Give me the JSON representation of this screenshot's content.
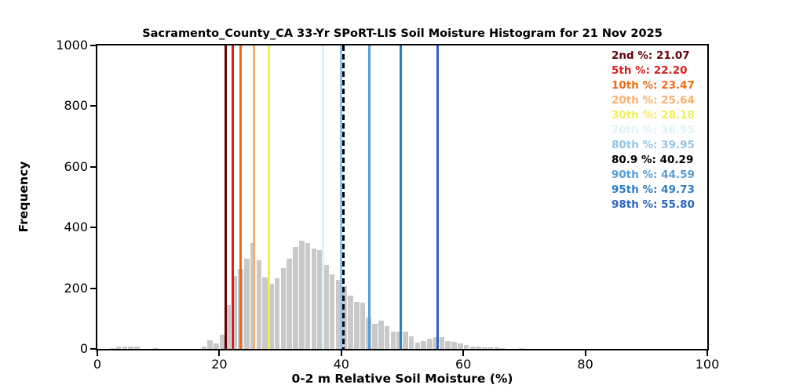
{
  "chart_data": {
    "type": "histogram",
    "title": "Sacramento_County_CA 33-Yr SPoRT-LIS Soil Moisture Histogram for 21 Nov 2025",
    "xlabel": "0-2 m Relative Soil Moisture (%)",
    "ylabel": "Frequency",
    "xlim": [
      0,
      100
    ],
    "ylim": [
      0,
      1000
    ],
    "x_ticks": [
      0,
      20,
      40,
      60,
      80,
      100
    ],
    "y_ticks": [
      0,
      200,
      400,
      600,
      800,
      1000
    ],
    "grid": false,
    "legend_position": "upper right inside plot, no box, colored text",
    "bar_color": "#c9c9c9",
    "bin_width": 1,
    "bars": [
      [
        2,
        3
      ],
      [
        3,
        8
      ],
      [
        4,
        7
      ],
      [
        5,
        7
      ],
      [
        6,
        8
      ],
      [
        9,
        3
      ],
      [
        17,
        8
      ],
      [
        18,
        28
      ],
      [
        19,
        17
      ],
      [
        20,
        46
      ],
      [
        21,
        146
      ],
      [
        22,
        240
      ],
      [
        23,
        263
      ],
      [
        24,
        296
      ],
      [
        25,
        350
      ],
      [
        26,
        292
      ],
      [
        27,
        236
      ],
      [
        28,
        215
      ],
      [
        29,
        232
      ],
      [
        30,
        266
      ],
      [
        31,
        296
      ],
      [
        32,
        335
      ],
      [
        33,
        356
      ],
      [
        34,
        350
      ],
      [
        35,
        330
      ],
      [
        36,
        325
      ],
      [
        37,
        276
      ],
      [
        38,
        245
      ],
      [
        39,
        227
      ],
      [
        40,
        206
      ],
      [
        41,
        175
      ],
      [
        42,
        155
      ],
      [
        43,
        152
      ],
      [
        44,
        103
      ],
      [
        45,
        83
      ],
      [
        46,
        92
      ],
      [
        47,
        75
      ],
      [
        48,
        56
      ],
      [
        49,
        57
      ],
      [
        50,
        56
      ],
      [
        51,
        41
      ],
      [
        52,
        20
      ],
      [
        53,
        26
      ],
      [
        54,
        34
      ],
      [
        55,
        40
      ],
      [
        56,
        39
      ],
      [
        57,
        26
      ],
      [
        58,
        23
      ],
      [
        59,
        17
      ],
      [
        60,
        13
      ],
      [
        61,
        9
      ],
      [
        62,
        8
      ],
      [
        63,
        6
      ],
      [
        64,
        6
      ],
      [
        65,
        5
      ],
      [
        66,
        3
      ],
      [
        69,
        2
      ]
    ],
    "levels": [
      {
        "key": "p2",
        "label": "2nd %",
        "value": 21.07,
        "display": "21.07",
        "color": "#67000d",
        "style": "solid"
      },
      {
        "key": "p5",
        "label": "5th %",
        "value": 22.2,
        "display": "22.20",
        "color": "#d7201c",
        "style": "solid"
      },
      {
        "key": "p10",
        "label": "10th %",
        "value": 23.47,
        "display": "23.47",
        "color": "#f16913",
        "style": "solid"
      },
      {
        "key": "p20",
        "label": "20th %",
        "value": 25.64,
        "display": "25.64",
        "color": "#fdae6b",
        "style": "solid"
      },
      {
        "key": "p30",
        "label": "30th %",
        "value": 28.18,
        "display": "28.18",
        "color": "#f3ee4f",
        "style": "solid"
      },
      {
        "key": "p70",
        "label": "70th %",
        "value": 36.95,
        "display": "36.95",
        "color": "#dcf4fa",
        "style": "solid"
      },
      {
        "key": "p80",
        "label": "80th %",
        "value": 39.95,
        "display": "39.95",
        "color": "#92c5e8",
        "style": "solid"
      },
      {
        "key": "current",
        "label": "80.9 %",
        "value": 40.29,
        "display": "40.29",
        "color": "#000000",
        "style": "dashed"
      },
      {
        "key": "p90",
        "label": "90th %",
        "value": 44.59,
        "display": "44.59",
        "color": "#559dd9",
        "style": "solid"
      },
      {
        "key": "p95",
        "label": "95th %",
        "value": 49.73,
        "display": "49.73",
        "color": "#2e7ec4",
        "style": "solid"
      },
      {
        "key": "p98",
        "label": "98th %",
        "value": 55.8,
        "display": "55.80",
        "color": "#2a63c6",
        "style": "solid"
      }
    ]
  }
}
